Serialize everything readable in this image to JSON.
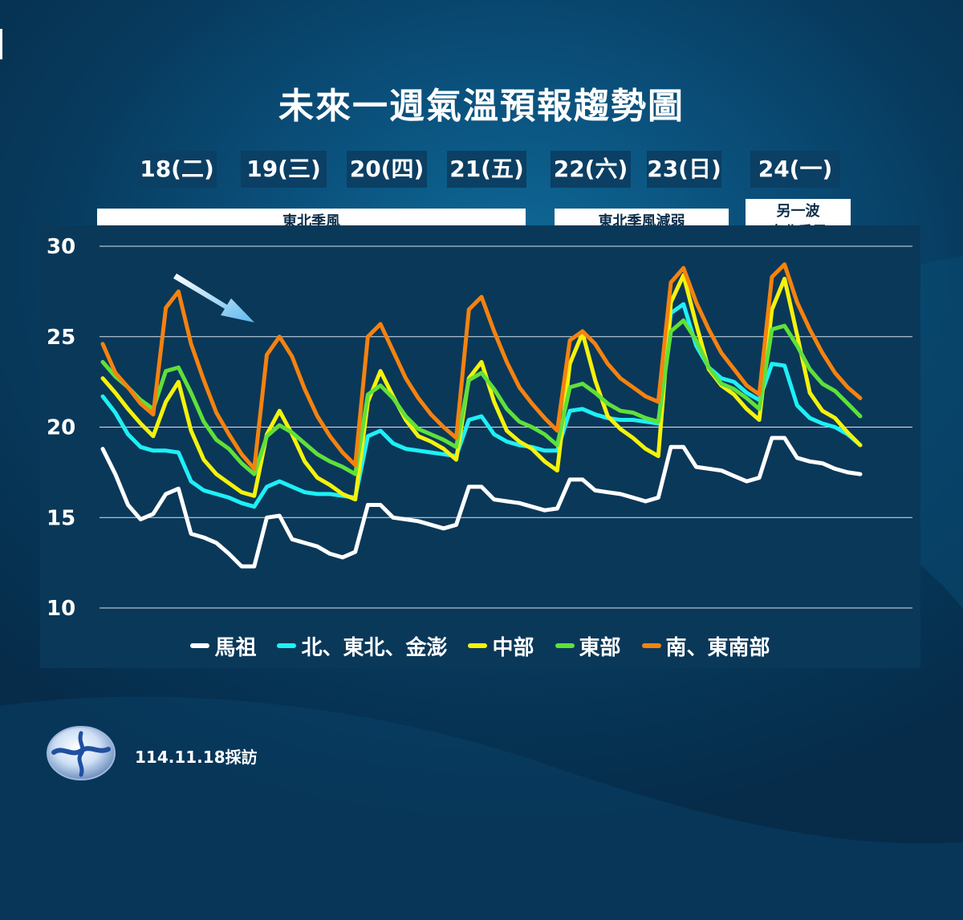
{
  "chart_data": {
    "type": "line",
    "title": "未來一週氣溫預報趨勢圖",
    "days": [
      "18(二)",
      "19(三)",
      "20(四)",
      "21(五)",
      "22(六)",
      "23(日)",
      "24(一)"
    ],
    "periods": [
      {
        "label": "東北季風"
      },
      {
        "label": "東北季風減弱"
      },
      {
        "label": "另一波\n東北季風"
      }
    ],
    "yticks": [
      10,
      15,
      20,
      25,
      30
    ],
    "ylim": [
      10,
      30
    ],
    "grid": true,
    "legend_position": "bottom",
    "x_per_day": 6,
    "series": [
      {
        "name": "馬祖",
        "color": "#ffffff",
        "values": [
          18.8,
          17.4,
          15.7,
          14.9,
          15.2,
          16.3,
          16.6,
          14.1,
          13.9,
          13.6,
          13.0,
          12.3,
          12.3,
          15.0,
          15.1,
          13.8,
          13.6,
          13.4,
          13.0,
          12.8,
          13.1,
          15.7,
          15.7,
          15.0,
          14.9,
          14.8,
          14.6,
          14.4,
          14.6,
          16.7,
          16.7,
          16.0,
          15.9,
          15.8,
          15.6,
          15.4,
          15.5,
          17.1,
          17.1,
          16.5,
          16.4,
          16.3,
          16.1,
          15.9,
          16.1,
          18.9,
          18.9,
          17.8,
          17.7,
          17.6,
          17.3,
          17.0,
          17.2,
          19.4,
          19.4,
          18.3,
          18.1,
          18.0,
          17.7,
          17.5,
          17.4
        ]
      },
      {
        "name": "北、東北、金澎",
        "color": "#1ef0f5",
        "values": [
          21.7,
          20.8,
          19.6,
          18.9,
          18.7,
          18.7,
          18.6,
          17.0,
          16.5,
          16.3,
          16.1,
          15.8,
          15.6,
          16.7,
          17.0,
          16.7,
          16.4,
          16.3,
          16.3,
          16.2,
          16.1,
          19.5,
          19.8,
          19.1,
          18.8,
          18.7,
          18.6,
          18.5,
          18.4,
          20.4,
          20.6,
          19.6,
          19.2,
          19.0,
          18.9,
          18.7,
          18.7,
          20.9,
          21.0,
          20.7,
          20.5,
          20.4,
          20.4,
          20.3,
          20.2,
          26.3,
          26.8,
          24.5,
          23.3,
          22.7,
          22.5,
          21.9,
          21.5,
          23.5,
          23.4,
          21.2,
          20.5,
          20.2,
          20.0,
          19.6,
          19.0
        ]
      },
      {
        "name": "中部",
        "color": "#f5f20a",
        "values": [
          22.7,
          21.9,
          21.0,
          20.2,
          19.5,
          21.4,
          22.5,
          19.8,
          18.2,
          17.4,
          16.9,
          16.4,
          16.2,
          19.6,
          20.9,
          19.6,
          18.1,
          17.2,
          16.8,
          16.3,
          16.0,
          21.4,
          23.1,
          21.7,
          20.4,
          19.5,
          19.2,
          18.8,
          18.2,
          22.7,
          23.6,
          21.4,
          19.8,
          19.2,
          18.8,
          18.1,
          17.6,
          23.5,
          25.2,
          22.6,
          20.6,
          19.9,
          19.4,
          18.8,
          18.4,
          26.9,
          28.4,
          25.7,
          23.2,
          22.3,
          21.8,
          21.0,
          20.4,
          26.5,
          28.2,
          25.1,
          21.9,
          20.9,
          20.5,
          19.7,
          19.0
        ]
      },
      {
        "name": "東部",
        "color": "#5fe03a",
        "values": [
          23.6,
          22.8,
          22.2,
          21.5,
          21.0,
          23.1,
          23.3,
          21.9,
          20.3,
          19.3,
          18.8,
          18.0,
          17.4,
          19.5,
          20.1,
          19.7,
          19.1,
          18.5,
          18.1,
          17.8,
          17.4,
          21.8,
          22.3,
          21.6,
          20.6,
          19.9,
          19.6,
          19.3,
          18.9,
          22.6,
          23.0,
          22.1,
          21.0,
          20.3,
          20.0,
          19.6,
          19.0,
          22.2,
          22.4,
          21.9,
          21.3,
          20.9,
          20.8,
          20.5,
          20.3,
          25.3,
          25.9,
          24.8,
          23.3,
          22.4,
          22.1,
          21.6,
          21.0,
          25.4,
          25.6,
          24.5,
          23.2,
          22.4,
          22.0,
          21.3,
          20.6
        ]
      },
      {
        "name": "南、東南部",
        "color": "#f5820f",
        "values": [
          24.6,
          23.0,
          22.2,
          21.3,
          20.7,
          26.6,
          27.5,
          24.6,
          22.6,
          20.8,
          19.6,
          18.5,
          17.7,
          24.0,
          25.0,
          23.9,
          22.1,
          20.6,
          19.5,
          18.6,
          17.9,
          25.0,
          25.7,
          24.2,
          22.7,
          21.6,
          20.7,
          20.0,
          19.4,
          26.5,
          27.2,
          25.3,
          23.6,
          22.2,
          21.3,
          20.5,
          19.8,
          24.8,
          25.3,
          24.6,
          23.5,
          22.7,
          22.2,
          21.7,
          21.4,
          28.0,
          28.8,
          26.9,
          25.4,
          24.1,
          23.2,
          22.3,
          21.8,
          28.3,
          29.0,
          26.9,
          25.4,
          24.1,
          23.0,
          22.2,
          21.6
        ]
      }
    ]
  },
  "footer": {
    "date_note": "114.11.18採訪"
  }
}
